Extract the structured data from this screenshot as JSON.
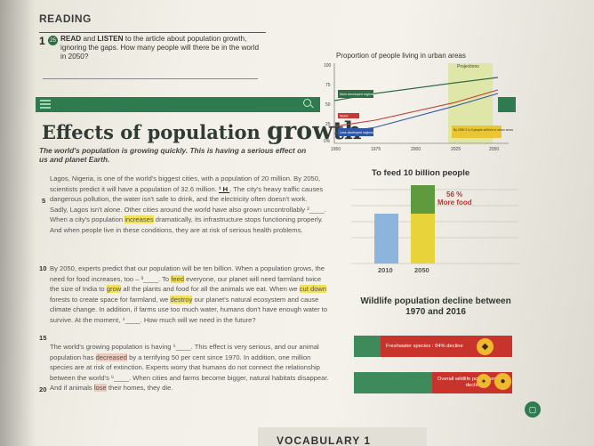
{
  "section": {
    "title": "READING"
  },
  "task": {
    "number": "1",
    "audio_track": "25",
    "text_bold": "READ",
    "text_and": " and ",
    "text_bold2": "LISTEN",
    "text_rest": " to the article about population growth, ignoring the gaps. How many people will there be in the world in 2050?"
  },
  "article": {
    "title_small": "Effects of population ",
    "title_big": "growth",
    "subtitle": "The world's population is growing quickly. This is having a serious effect on us and planet Earth.",
    "line_markers": [
      "5",
      "10",
      "15",
      "20"
    ],
    "p1_a": "Lagos, Nigeria, is one of the world's biggest cities, with a population of 20 million. By 2050, scientists predict it will have a population of 32.6 million. ",
    "p1_gap": "¹ H ",
    "p1_b": ". The city's heavy traffic causes dangerous pollution, the water isn't safe to drink, and the electricity often doesn't work. Sadly, Lagos isn't alone. Other cities around the world have also grown uncontrollably ²____. When a city's population ",
    "p1_hl": "increases",
    "p1_c": " dramatically, its infrastructure stops functioning properly. And when people live in these conditions, they are at risk of serious health problems.",
    "p2_a": "By 2050, experts predict that our population will be ten billion. When a population grows, the need for food increases, too – ³____. To ",
    "p2_hl1": "feed",
    "p2_b": " everyone, our planet will need farmland twice the size of India to ",
    "p2_hl2": "grow",
    "p2_c": " all the plants and food for all the animals we eat. When we ",
    "p2_hl3": "cut down",
    "p2_d": " forests to create space for farmland, we ",
    "p2_hl4": "destroy",
    "p2_e": " our planet's natural ecosystem and cause climate change. In addition, if farms use too much water, humans don't have enough water to survive. At the moment, ⁴____. How much will we need in the future?",
    "p3_a": "The world's growing population is having ⁵____. This effect is very serious, and our animal population has ",
    "p3_hl1": "decreased",
    "p3_b": " by a terrifying 50 per cent since 1970. In addition, one million species are at risk of extinction. Experts worry that humans do not connect the relationship between the world's ⁶____. When cities and farms become bigger, natural habitats disappear. And if animals ",
    "p3_hl2": "lose",
    "p3_c": " their homes, they die."
  },
  "urban_chart": {
    "title": "Proportion of people living in urban areas",
    "projection_label": "Projections",
    "y_ticks": [
      "100",
      "75",
      "50",
      "25",
      "0%"
    ],
    "x_ticks": [
      "1950",
      "1975",
      "2000",
      "2025",
      "2050"
    ],
    "series_labels": [
      "More developed regions",
      "World",
      "Less developed regions"
    ],
    "note": "By 2050 2 in 3 people will live in urban areas",
    "colors": {
      "more_developed": "#2f6e45",
      "world": "#c23a3a",
      "less_developed": "#2f56a8",
      "projection": "#dfe7a8"
    }
  },
  "food_chart": {
    "title": "To feed 10 billion people",
    "label_pct": "56 %",
    "label_text": "More food",
    "years": [
      "2010",
      "2050"
    ],
    "colors": {
      "blue": "#8cb4dc",
      "yellow": "#e9d33a",
      "green": "#5f9a3f"
    }
  },
  "wildlife_chart": {
    "title": "Wildlife population decline between 1970 and 2016",
    "bars": [
      {
        "label": "Freshwater species : 84% decline",
        "decline_pct": 84
      },
      {
        "label": "Overall wildlife population : 68% decline",
        "decline_pct": 68
      }
    ]
  },
  "footer": {
    "next_section": "VOCABULARY 1"
  }
}
